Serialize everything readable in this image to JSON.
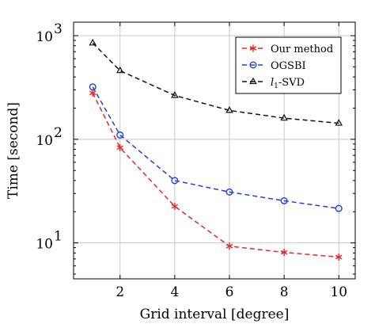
{
  "chart_data": {
    "type": "line",
    "title": "",
    "xlabel": "Grid interval [degree]",
    "ylabel": "Time [second]",
    "xscale": "linear",
    "yscale": "log",
    "xlim": [
      0.3,
      10.6
    ],
    "ylim": [
      4.5,
      1350
    ],
    "xticks": [
      2,
      4,
      6,
      8,
      10
    ],
    "xtick_labels": [
      "2",
      "4",
      "6",
      "8",
      "10"
    ],
    "yticks": [
      10,
      100,
      1000
    ],
    "ytick_labels": [
      "10",
      "10",
      "10"
    ],
    "ytick_exponents": [
      "1",
      "2",
      "3"
    ],
    "grid": true,
    "legend_position": "top-right",
    "x": [
      1,
      2,
      4,
      6,
      8,
      10
    ],
    "series": [
      {
        "name": "Our method",
        "color": "#e8262a",
        "marker": "star",
        "values": [
          280,
          83,
          22.5,
          9.3,
          8.1,
          7.3
        ]
      },
      {
        "name": "OGSBI",
        "color": "#1f3ee0",
        "marker": "circle",
        "values": [
          320,
          110,
          40,
          31,
          25.5,
          21.5
        ]
      },
      {
        "name": "l1-SVD",
        "color": "#111111",
        "marker": "triangle",
        "legend_main": "l",
        "legend_sub": "1",
        "legend_rest": "-SVD",
        "values": [
          850,
          460,
          265,
          190,
          160,
          143
        ]
      }
    ]
  }
}
